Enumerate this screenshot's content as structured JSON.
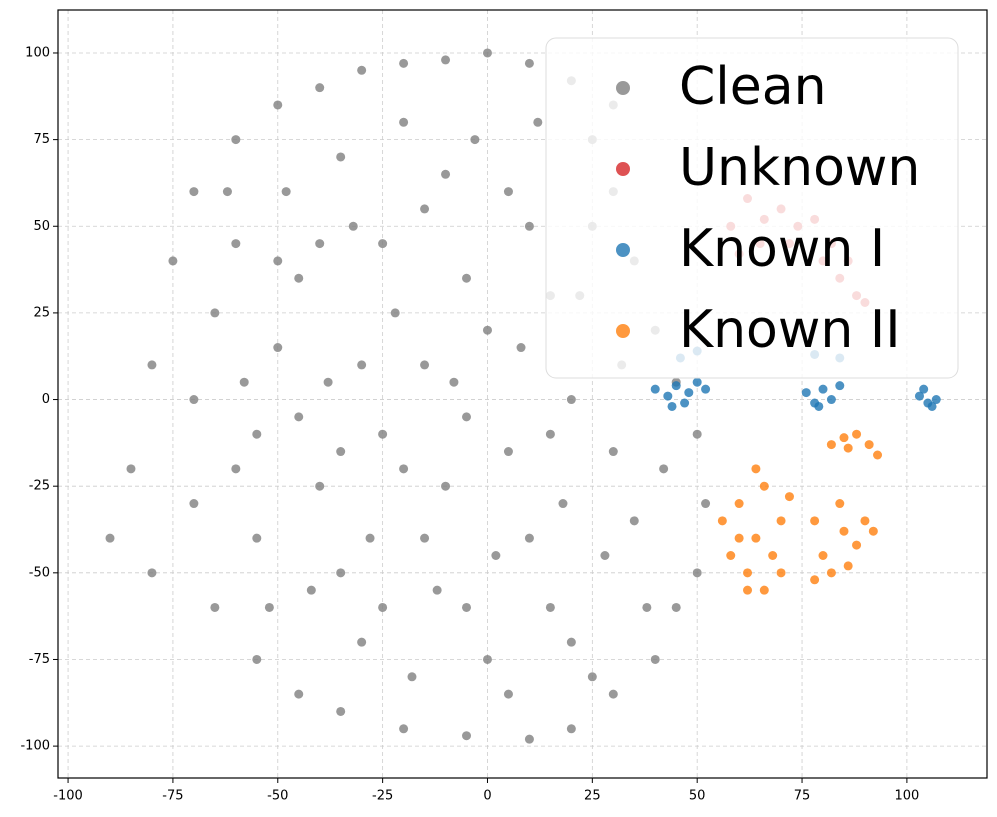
{
  "chart_data": {
    "type": "scatter",
    "xlim": [
      -102.4,
      119.1
    ],
    "ylim": [
      -109.2,
      112.4
    ],
    "xticks": [
      -100,
      -75,
      -50,
      -25,
      0,
      25,
      50,
      75,
      100
    ],
    "yticks": [
      -100,
      -75,
      -50,
      -25,
      0,
      25,
      50,
      75,
      100
    ],
    "grid": true,
    "legend": "upper right",
    "series": [
      {
        "name": "Clean",
        "color": "#7f7f7f",
        "x": [
          -90,
          -85,
          -80,
          -75,
          -70,
          -60,
          -50,
          -40,
          -30,
          -20,
          -10,
          0,
          10,
          20,
          30,
          -65,
          -55,
          -45,
          -35,
          -20,
          -5,
          10,
          20,
          30,
          40,
          45,
          50,
          52,
          50,
          45,
          40,
          35,
          30,
          25,
          -70,
          -70,
          -65,
          -60,
          -55,
          -55,
          -50,
          -48,
          -45,
          -42,
          -40,
          -38,
          -35,
          -32,
          -30,
          -28,
          -25,
          -22,
          -20,
          -18,
          -15,
          -12,
          -10,
          -8,
          -5,
          -3,
          0,
          2,
          5,
          8,
          10,
          12,
          15,
          18,
          20,
          22,
          25,
          28,
          30,
          32,
          -80,
          -60,
          -58,
          -52,
          -45,
          -35,
          -25,
          -15,
          -5,
          5,
          15,
          25,
          -10,
          -30,
          -40,
          -20,
          0,
          10,
          35,
          38,
          -62,
          -50,
          -25,
          5,
          15,
          -15,
          -5,
          -35,
          20,
          42
        ],
        "y": [
          -40,
          -20,
          10,
          40,
          60,
          75,
          85,
          90,
          95,
          97,
          98,
          100,
          97,
          92,
          85,
          -60,
          -75,
          -85,
          -90,
          -95,
          -97,
          -98,
          -95,
          -85,
          -75,
          -60,
          -50,
          -30,
          -10,
          5,
          20,
          40,
          60,
          75,
          -30,
          0,
          25,
          45,
          -40,
          -10,
          15,
          60,
          35,
          -55,
          -25,
          5,
          70,
          50,
          -70,
          -40,
          -10,
          25,
          80,
          -80,
          55,
          -55,
          -25,
          5,
          35,
          75,
          -75,
          -45,
          -15,
          15,
          50,
          80,
          -60,
          -30,
          0,
          30,
          -80,
          -45,
          -15,
          10,
          -50,
          -20,
          5,
          -60,
          -5,
          -50,
          -60,
          -40,
          -60,
          -85,
          -10,
          50,
          65,
          10,
          45,
          -20,
          20,
          -40,
          -35,
          -60,
          60,
          40,
          45,
          60,
          30,
          10,
          -5,
          -15,
          -70,
          -20
        ]
      },
      {
        "name": "Unknown",
        "color": "#d62728",
        "x": [
          58,
          62,
          66,
          70,
          74,
          78,
          82,
          86,
          88,
          84,
          60,
          65,
          72,
          80,
          90
        ],
        "y": [
          50,
          58,
          52,
          55,
          50,
          52,
          45,
          40,
          30,
          35,
          42,
          45,
          45,
          40,
          28
        ]
      },
      {
        "name": "Known I",
        "color": "#1f77b4",
        "x": [
          40,
          43,
          45,
          47,
          48,
          50,
          44,
          52,
          76,
          78,
          80,
          82,
          84,
          79,
          103,
          105,
          107,
          104,
          106,
          50,
          78,
          84,
          46
        ],
        "y": [
          3,
          1,
          4,
          -1,
          2,
          5,
          -2,
          3,
          2,
          -1,
          3,
          0,
          4,
          -2,
          1,
          -1,
          0,
          3,
          -2,
          14,
          13,
          12,
          12
        ]
      },
      {
        "name": "Known II",
        "color": "#ff7f0e",
        "x": [
          56,
          58,
          60,
          62,
          64,
          66,
          68,
          70,
          62,
          66,
          72,
          60,
          64,
          70,
          78,
          80,
          82,
          85,
          88,
          90,
          86,
          84,
          78,
          92,
          82,
          85,
          88,
          91,
          93,
          86
        ],
        "y": [
          -35,
          -45,
          -30,
          -50,
          -40,
          -25,
          -45,
          -35,
          -55,
          -55,
          -28,
          -40,
          -20,
          -50,
          -35,
          -45,
          -50,
          -38,
          -42,
          -35,
          -48,
          -30,
          -52,
          -38,
          -13,
          -11,
          -10,
          -13,
          -16,
          -14
        ]
      }
    ]
  }
}
